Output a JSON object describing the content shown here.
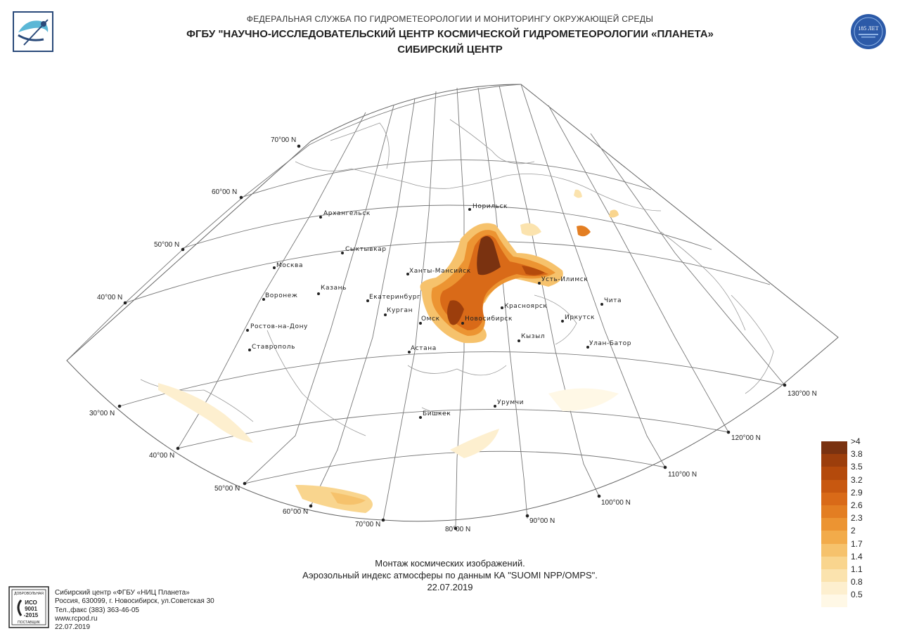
{
  "header": {
    "agency": "ФЕДЕРАЛЬНАЯ СЛУЖБА ПО ГИДРОМЕТЕОРОЛОГИИ И МОНИТОРИНГУ ОКРУЖАЮЩЕЙ СРЕДЫ",
    "institution": "ФГБУ \"НАУЧНО-ИССЛЕДОВАТЕЛЬСКИЙ ЦЕНТР КОСМИЧЕСКОЙ ГИДРОМЕТЕОРОЛОГИИ «ПЛАНЕТА»",
    "center": "СИБИРСКИЙ ЦЕНТР",
    "badge_text": "185 ЛЕТ"
  },
  "map": {
    "cities": [
      "Норильск",
      "Архангельск",
      "Сыктывкар",
      "Москва",
      "Ханты-Мансийск",
      "Усть-Илимск",
      "Казань",
      "Воронеж",
      "Екатеринбург",
      "Красноярск",
      "Чита",
      "Курган",
      "Омск",
      "Новосибирск",
      "Иркутск",
      "Ростов-на-Дону",
      "Кызыл",
      "Улан-Батор",
      "Ставрополь",
      "Астана",
      "Урумчи",
      "Бишкек"
    ],
    "lat_labels": [
      "70°00 N",
      "60°00 N",
      "50°00 N",
      "40°00 N",
      "30°00 N",
      "40°00 N",
      "50°00 N"
    ],
    "lon_labels": [
      "60°00 N",
      "70°00 N",
      "80°00 N",
      "90°00 N",
      "100°00 N",
      "110°00 N",
      "120°00 N",
      "130°00 N"
    ]
  },
  "caption": {
    "line1": "Монтаж космических изображений.",
    "line2": "Аэрозольный индекс атмосферы по данным КА \"SUOMI NPP/OMPS\".",
    "date": "22.07.2019"
  },
  "legend": {
    "labels": [
      ">4",
      "3.8",
      "3.5",
      "3.2",
      "2.9",
      "2.6",
      "2.3",
      "2",
      "1.7",
      "1.4",
      "1.1",
      "0.8",
      "0.5"
    ],
    "colors": [
      "#7a3210",
      "#9c3e0c",
      "#b44a0c",
      "#c85810",
      "#d96a18",
      "#e37e22",
      "#ec9432",
      "#f2ab4a",
      "#f6c26c",
      "#f9d58e",
      "#fbe3ae",
      "#fdefcf",
      "#fff8e6"
    ]
  },
  "footer": {
    "line1": "Сибирский центр «ФГБУ «НИЦ Планета»",
    "line2": "Россия, 630099, г. Новосибирск, ул.Советская 30",
    "line3": "Тел.,факс (383) 363-46-05",
    "line4": "www.rcpod.ru",
    "line5": "22.07.2019",
    "iso_top": "ДОБРОВОЛЬНАЯ",
    "iso_mid1": "ИСО",
    "iso_mid2": "9001",
    "iso_mid3": "-2015",
    "iso_bottom": "ПОСТАВЩИК"
  }
}
